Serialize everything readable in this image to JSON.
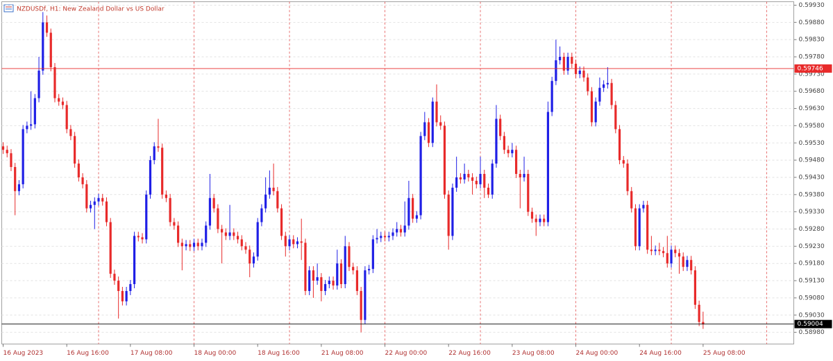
{
  "chart_data": {
    "type": "candlestick",
    "title": "NZDUSDf, H1:  New Zealand Dollar vs US Dollar",
    "up_color": "#1f1fe6",
    "down_color": "#e82a2a",
    "grid": true,
    "xlim": [
      -0.35,
      198.8
    ],
    "ylim": [
      0.58946,
      0.5994
    ],
    "xgrid": [
      24,
      48,
      72,
      96,
      120,
      144,
      168,
      192
    ],
    "xticks": [
      {
        "value": 0,
        "label": "16 Aug 2023"
      },
      {
        "value": 16,
        "label": "16 Aug 16:00"
      },
      {
        "value": 32,
        "label": "17 Aug 08:00"
      },
      {
        "value": 48,
        "label": "18 Aug 00:00"
      },
      {
        "value": 64,
        "label": "18 Aug 16:00"
      },
      {
        "value": 80,
        "label": "21 Aug 08:00"
      },
      {
        "value": 96,
        "label": "22 Aug 00:00"
      },
      {
        "value": 112,
        "label": "22 Aug 16:00"
      },
      {
        "value": 128,
        "label": "23 Aug 08:00"
      },
      {
        "value": 144,
        "label": "24 Aug 00:00"
      },
      {
        "value": 160,
        "label": "24 Aug 16:00"
      },
      {
        "value": 176,
        "label": "25 Aug 08:00"
      }
    ],
    "yticks": [
      {
        "value": 0.5993,
        "label": "0.59930"
      },
      {
        "value": 0.5988,
        "label": "0.59880"
      },
      {
        "value": 0.5983,
        "label": "0.59830"
      },
      {
        "value": 0.5978,
        "label": "0.59780"
      },
      {
        "value": 0.5973,
        "label": "0.59730"
      },
      {
        "value": 0.5968,
        "label": "0.59680"
      },
      {
        "value": 0.5963,
        "label": "0.59630"
      },
      {
        "value": 0.5958,
        "label": "0.59580"
      },
      {
        "value": 0.5953,
        "label": "0.59530"
      },
      {
        "value": 0.5948,
        "label": "0.59480"
      },
      {
        "value": 0.5943,
        "label": "0.59430"
      },
      {
        "value": 0.5938,
        "label": "0.59380"
      },
      {
        "value": 0.5933,
        "label": "0.59330"
      },
      {
        "value": 0.5928,
        "label": "0.59280"
      },
      {
        "value": 0.5923,
        "label": "0.59230"
      },
      {
        "value": 0.5918,
        "label": "0.59180"
      },
      {
        "value": 0.5913,
        "label": "0.59130"
      },
      {
        "value": 0.5908,
        "label": "0.59080"
      },
      {
        "value": 0.5903,
        "label": "0.59030"
      },
      {
        "value": 0.5898,
        "label": "0.58980"
      }
    ],
    "price_lines": [
      {
        "value": 0.59746,
        "label": "0.59746",
        "color": "#e82a2a"
      },
      {
        "value": 0.59004,
        "label": "0.59004",
        "color": "#000000"
      }
    ],
    "ohlc": [
      [
        0.5952,
        0.59532,
        0.59498,
        0.5951
      ],
      [
        0.5951,
        0.59522,
        0.59488,
        0.595
      ],
      [
        0.595,
        0.59512,
        0.59448,
        0.5946
      ],
      [
        0.5946,
        0.59472,
        0.5932,
        0.5939
      ],
      [
        0.5939,
        0.59422,
        0.59378,
        0.5941
      ],
      [
        0.5941,
        0.59582,
        0.59398,
        0.5957
      ],
      [
        0.5957,
        0.59592,
        0.59558,
        0.5958
      ],
      [
        0.5958,
        0.5968,
        0.59568,
        0.59584
      ],
      [
        0.59584,
        0.59672,
        0.59572,
        0.5966
      ],
      [
        0.5966,
        0.5978,
        0.59648,
        0.5974
      ],
      [
        0.5974,
        0.5991,
        0.59728,
        0.5988
      ],
      [
        0.5988,
        0.599,
        0.59838,
        0.5985
      ],
      [
        0.5985,
        0.59862,
        0.59738,
        0.5975
      ],
      [
        0.5975,
        0.59762,
        0.59648,
        0.5966
      ],
      [
        0.5966,
        0.59672,
        0.59638,
        0.5965
      ],
      [
        0.5965,
        0.59662,
        0.59628,
        0.5964
      ],
      [
        0.5964,
        0.59652,
        0.59558,
        0.5957
      ],
      [
        0.5957,
        0.59582,
        0.59538,
        0.5955
      ],
      [
        0.5955,
        0.59562,
        0.59458,
        0.5947
      ],
      [
        0.5947,
        0.59482,
        0.59418,
        0.5943
      ],
      [
        0.5943,
        0.59442,
        0.59398,
        0.5941
      ],
      [
        0.5941,
        0.59422,
        0.59328,
        0.5934
      ],
      [
        0.5934,
        0.59362,
        0.59328,
        0.5935
      ],
      [
        0.5935,
        0.59372,
        0.5928,
        0.5936
      ],
      [
        0.5936,
        0.59382,
        0.59348,
        0.5937
      ],
      [
        0.5937,
        0.59382,
        0.59348,
        0.5936
      ],
      [
        0.5936,
        0.59372,
        0.59288,
        0.593
      ],
      [
        0.593,
        0.59312,
        0.59138,
        0.5915
      ],
      [
        0.5915,
        0.59162,
        0.59118,
        0.5913
      ],
      [
        0.5913,
        0.59142,
        0.5902,
        0.591
      ],
      [
        0.591,
        0.59112,
        0.59058,
        0.5907
      ],
      [
        0.5907,
        0.59112,
        0.59058,
        0.591
      ],
      [
        0.591,
        0.59132,
        0.59088,
        0.5912
      ],
      [
        0.5912,
        0.59272,
        0.59108,
        0.5926
      ],
      [
        0.5926,
        0.59272,
        0.59244,
        0.59256
      ],
      [
        0.59256,
        0.59268,
        0.59238,
        0.5925
      ],
      [
        0.5925,
        0.59392,
        0.59238,
        0.5938
      ],
      [
        0.5938,
        0.59492,
        0.59368,
        0.5948
      ],
      [
        0.5948,
        0.59532,
        0.59468,
        0.5952
      ],
      [
        0.5952,
        0.596,
        0.59504,
        0.59516
      ],
      [
        0.59516,
        0.59528,
        0.59368,
        0.5938
      ],
      [
        0.5938,
        0.59392,
        0.59358,
        0.5937
      ],
      [
        0.5937,
        0.59382,
        0.59288,
        0.593
      ],
      [
        0.593,
        0.59312,
        0.59278,
        0.5929
      ],
      [
        0.5929,
        0.59302,
        0.59228,
        0.5924
      ],
      [
        0.5924,
        0.59252,
        0.5916,
        0.5923
      ],
      [
        0.5923,
        0.59248,
        0.59218,
        0.59236
      ],
      [
        0.59236,
        0.59248,
        0.59216,
        0.59228
      ],
      [
        0.59228,
        0.59252,
        0.59216,
        0.5924
      ],
      [
        0.5924,
        0.59252,
        0.59218,
        0.5923
      ],
      [
        0.5923,
        0.59252,
        0.59218,
        0.5924
      ],
      [
        0.5924,
        0.59302,
        0.59228,
        0.5929
      ],
      [
        0.5929,
        0.5944,
        0.59278,
        0.5937
      ],
      [
        0.5937,
        0.59382,
        0.59328,
        0.5934
      ],
      [
        0.5934,
        0.59352,
        0.59268,
        0.5928
      ],
      [
        0.5928,
        0.59292,
        0.5918,
        0.5927
      ],
      [
        0.5927,
        0.59282,
        0.59248,
        0.5926
      ],
      [
        0.5926,
        0.5935,
        0.59248,
        0.5927
      ],
      [
        0.5927,
        0.59282,
        0.59248,
        0.5926
      ],
      [
        0.5926,
        0.59272,
        0.59238,
        0.5925
      ],
      [
        0.5925,
        0.59262,
        0.59218,
        0.5923
      ],
      [
        0.5923,
        0.59242,
        0.59208,
        0.5922
      ],
      [
        0.5922,
        0.59232,
        0.5914,
        0.5918
      ],
      [
        0.5918,
        0.59212,
        0.59168,
        0.592
      ],
      [
        0.592,
        0.59312,
        0.59188,
        0.593
      ],
      [
        0.593,
        0.59352,
        0.59288,
        0.5934
      ],
      [
        0.5934,
        0.5943,
        0.59328,
        0.5938
      ],
      [
        0.5938,
        0.5945,
        0.59368,
        0.594
      ],
      [
        0.594,
        0.5947,
        0.59378,
        0.5939
      ],
      [
        0.5939,
        0.59402,
        0.59328,
        0.5934
      ],
      [
        0.5934,
        0.59352,
        0.59248,
        0.5926
      ],
      [
        0.5926,
        0.59272,
        0.592,
        0.5923
      ],
      [
        0.5923,
        0.59262,
        0.59218,
        0.5925
      ],
      [
        0.5925,
        0.59262,
        0.59224,
        0.59236
      ],
      [
        0.59236,
        0.59256,
        0.59224,
        0.59244
      ],
      [
        0.59244,
        0.5931,
        0.5919,
        0.5924
      ],
      [
        0.5924,
        0.59252,
        0.59088,
        0.591
      ],
      [
        0.591,
        0.59172,
        0.59088,
        0.5916
      ],
      [
        0.5916,
        0.59172,
        0.5908,
        0.5913
      ],
      [
        0.5913,
        0.5918,
        0.59118,
        0.5914
      ],
      [
        0.5914,
        0.59152,
        0.5907,
        0.591
      ],
      [
        0.591,
        0.59132,
        0.59088,
        0.5912
      ],
      [
        0.5912,
        0.59142,
        0.59108,
        0.5913
      ],
      [
        0.5913,
        0.59142,
        0.59104,
        0.59116
      ],
      [
        0.59116,
        0.5922,
        0.59104,
        0.5918
      ],
      [
        0.5918,
        0.59192,
        0.59108,
        0.5912
      ],
      [
        0.5912,
        0.5926,
        0.59108,
        0.5923
      ],
      [
        0.5923,
        0.59242,
        0.59158,
        0.5917
      ],
      [
        0.5917,
        0.59182,
        0.59148,
        0.5916
      ],
      [
        0.5916,
        0.59172,
        0.59088,
        0.591
      ],
      [
        0.591,
        0.59112,
        0.5898,
        0.59016
      ],
      [
        0.59016,
        0.59172,
        0.59004,
        0.5916
      ],
      [
        0.5916,
        0.59176,
        0.59148,
        0.59164
      ],
      [
        0.59164,
        0.59262,
        0.59152,
        0.5925
      ],
      [
        0.5925,
        0.5928,
        0.59238,
        0.59254
      ],
      [
        0.59254,
        0.59272,
        0.59242,
        0.5926
      ],
      [
        0.5926,
        0.59272,
        0.59244,
        0.59256
      ],
      [
        0.59256,
        0.59272,
        0.59244,
        0.5926
      ],
      [
        0.5926,
        0.59282,
        0.59248,
        0.5927
      ],
      [
        0.5927,
        0.593,
        0.59258,
        0.5928
      ],
      [
        0.5928,
        0.59292,
        0.59258,
        0.5927
      ],
      [
        0.5927,
        0.5936,
        0.59258,
        0.5929
      ],
      [
        0.5929,
        0.5942,
        0.59278,
        0.5937
      ],
      [
        0.5937,
        0.59382,
        0.59298,
        0.5931
      ],
      [
        0.5931,
        0.59332,
        0.59298,
        0.5932
      ],
      [
        0.5932,
        0.59562,
        0.59308,
        0.5955
      ],
      [
        0.5955,
        0.5962,
        0.59538,
        0.5959
      ],
      [
        0.5959,
        0.59602,
        0.59518,
        0.5953
      ],
      [
        0.5953,
        0.59662,
        0.59518,
        0.5965
      ],
      [
        0.5965,
        0.597,
        0.59578,
        0.5959
      ],
      [
        0.5959,
        0.5961,
        0.59568,
        0.5958
      ],
      [
        0.5958,
        0.59592,
        0.59368,
        0.5938
      ],
      [
        0.5938,
        0.59392,
        0.5922,
        0.5926
      ],
      [
        0.5926,
        0.59412,
        0.59248,
        0.594
      ],
      [
        0.594,
        0.5949,
        0.59388,
        0.5943
      ],
      [
        0.5943,
        0.59442,
        0.59412,
        0.59424
      ],
      [
        0.59424,
        0.5947,
        0.59412,
        0.5944
      ],
      [
        0.5944,
        0.59452,
        0.59418,
        0.5943
      ],
      [
        0.5943,
        0.59442,
        0.5938,
        0.5942
      ],
      [
        0.5942,
        0.59432,
        0.59398,
        0.5941
      ],
      [
        0.5941,
        0.5949,
        0.59398,
        0.5944
      ],
      [
        0.5944,
        0.59452,
        0.5937,
        0.594
      ],
      [
        0.594,
        0.59412,
        0.5937,
        0.5938
      ],
      [
        0.5938,
        0.59482,
        0.59368,
        0.5947
      ],
      [
        0.5947,
        0.5964,
        0.59458,
        0.596
      ],
      [
        0.596,
        0.59612,
        0.59538,
        0.5955
      ],
      [
        0.5955,
        0.59562,
        0.59498,
        0.5951
      ],
      [
        0.5951,
        0.59522,
        0.59488,
        0.595
      ],
      [
        0.595,
        0.5953,
        0.59488,
        0.5951
      ],
      [
        0.5951,
        0.59522,
        0.59428,
        0.5944
      ],
      [
        0.5944,
        0.59452,
        0.5934,
        0.5943
      ],
      [
        0.5943,
        0.5949,
        0.59418,
        0.5944
      ],
      [
        0.5944,
        0.59452,
        0.59318,
        0.5933
      ],
      [
        0.5933,
        0.59342,
        0.59298,
        0.5931
      ],
      [
        0.5931,
        0.59322,
        0.5926,
        0.593
      ],
      [
        0.593,
        0.59322,
        0.59288,
        0.5931
      ],
      [
        0.5931,
        0.59322,
        0.59288,
        0.593
      ],
      [
        0.593,
        0.5965,
        0.59288,
        0.5962
      ],
      [
        0.5962,
        0.59722,
        0.59608,
        0.5971
      ],
      [
        0.5971,
        0.5983,
        0.59698,
        0.5977
      ],
      [
        0.5977,
        0.5981,
        0.59758,
        0.5978
      ],
      [
        0.5978,
        0.59792,
        0.59728,
        0.5974
      ],
      [
        0.5974,
        0.59792,
        0.59728,
        0.5978
      ],
      [
        0.5978,
        0.59792,
        0.59748,
        0.5976
      ],
      [
        0.5976,
        0.59772,
        0.59718,
        0.5973
      ],
      [
        0.5973,
        0.59752,
        0.59718,
        0.5974
      ],
      [
        0.5974,
        0.59752,
        0.59708,
        0.5972
      ],
      [
        0.5972,
        0.59732,
        0.59668,
        0.5968
      ],
      [
        0.5968,
        0.59692,
        0.59578,
        0.5959
      ],
      [
        0.5959,
        0.59662,
        0.59578,
        0.5965
      ],
      [
        0.5965,
        0.5972,
        0.59638,
        0.5969
      ],
      [
        0.5969,
        0.59712,
        0.59678,
        0.597
      ],
      [
        0.597,
        0.5975,
        0.59688,
        0.59704
      ],
      [
        0.59704,
        0.59716,
        0.59628,
        0.5964
      ],
      [
        0.5964,
        0.59652,
        0.59558,
        0.5957
      ],
      [
        0.5957,
        0.59582,
        0.59468,
        0.5948
      ],
      [
        0.5948,
        0.59492,
        0.59458,
        0.5947
      ],
      [
        0.5947,
        0.59482,
        0.59378,
        0.5939
      ],
      [
        0.5939,
        0.59402,
        0.59328,
        0.5934
      ],
      [
        0.5934,
        0.59352,
        0.59218,
        0.5923
      ],
      [
        0.5923,
        0.59352,
        0.59218,
        0.5934
      ],
      [
        0.5934,
        0.59362,
        0.59328,
        0.5935
      ],
      [
        0.5935,
        0.59362,
        0.59208,
        0.5922
      ],
      [
        0.5922,
        0.5926,
        0.59204,
        0.59216
      ],
      [
        0.59216,
        0.59232,
        0.59204,
        0.5922
      ],
      [
        0.5922,
        0.5924,
        0.59204,
        0.59216
      ],
      [
        0.59216,
        0.59228,
        0.59198,
        0.5921
      ],
      [
        0.5921,
        0.5926,
        0.59168,
        0.5918
      ],
      [
        0.5918,
        0.59232,
        0.59168,
        0.5922
      ],
      [
        0.5922,
        0.59232,
        0.59198,
        0.5921
      ],
      [
        0.5921,
        0.59222,
        0.5915,
        0.592
      ],
      [
        0.592,
        0.59212,
        0.59158,
        0.5917
      ],
      [
        0.5917,
        0.59202,
        0.59158,
        0.5919
      ],
      [
        0.5919,
        0.59202,
        0.59148,
        0.5916
      ],
      [
        0.5916,
        0.59172,
        0.59048,
        0.5906
      ],
      [
        0.5906,
        0.59072,
        0.58998,
        0.5901
      ],
      [
        0.5901,
        0.5904,
        0.5899,
        0.59004
      ]
    ]
  }
}
